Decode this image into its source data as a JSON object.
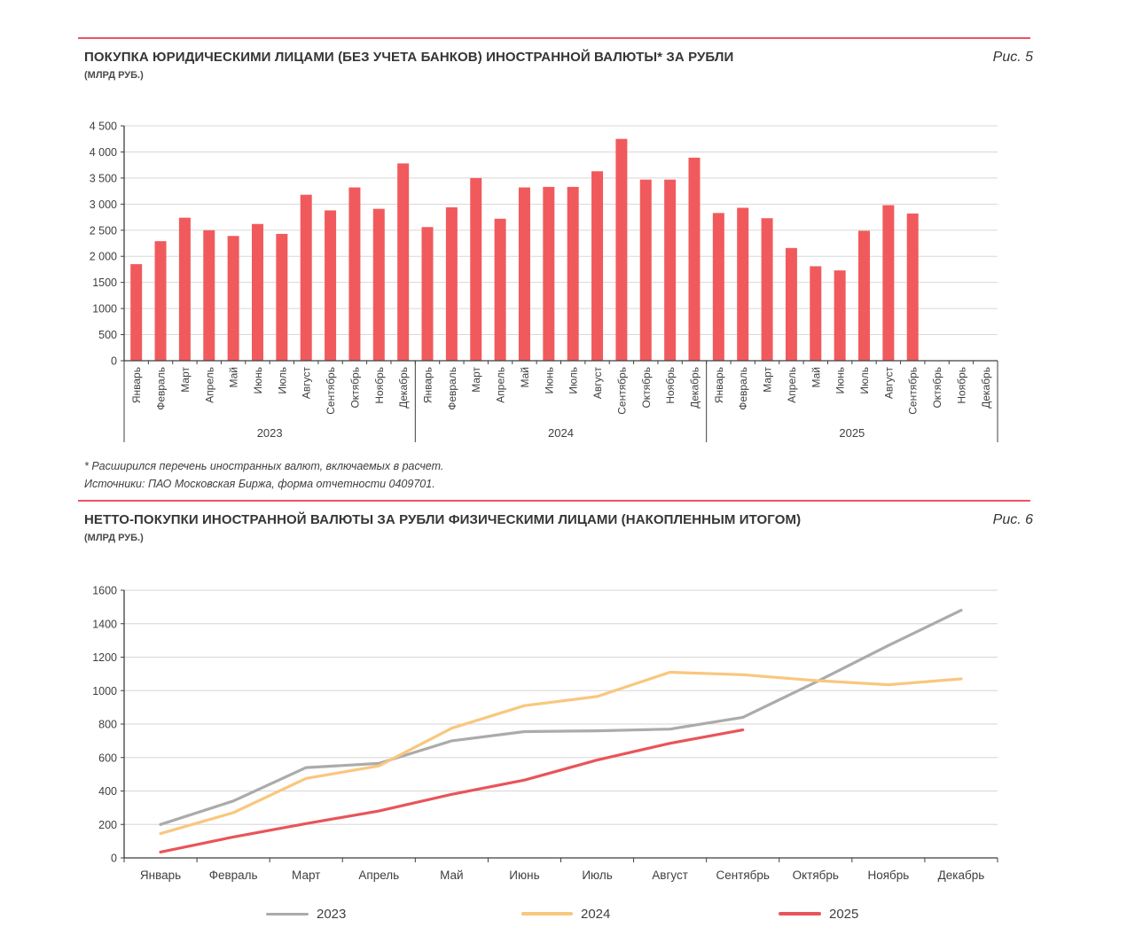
{
  "accent_rule_color": "#eb5264",
  "fig5": {
    "label": "Рис. 5",
    "units": "(МЛРД РУБ.)",
    "footnote": "* Расширился перечень иностранных валют, включаемых в расчет.",
    "source": "Источники: ПАО Московская Биржа, форма отчетности 0409701."
  },
  "fig6": {
    "label": "Рис. 6",
    "units": "(МЛРД РУБ.)"
  },
  "chart_data": [
    {
      "type": "bar",
      "title": "ПОКУПКА ЮРИДИЧЕСКИМИ ЛИЦАМИ (БЕЗ УЧЕТА БАНКОВ) ИНОСТРАННОЙ ВАЛЮТЫ* ЗА РУБЛИ",
      "units": "(МЛРД РУБ.)",
      "grid": true,
      "ylim": [
        0,
        4500
      ],
      "ytick_step": 500,
      "ytick_labels": [
        "0",
        "500",
        "1000",
        "1500",
        "2 000",
        "2 500",
        "3 000",
        "3 500",
        "4 000",
        "4 500"
      ],
      "categories": [
        "Январь",
        "Февраль",
        "Март",
        "Апрель",
        "Май",
        "Июнь",
        "Июль",
        "Август",
        "Сентябрь",
        "Октябрь",
        "Ноябрь",
        "Декабрь"
      ],
      "year_groups": [
        "2023",
        "2024",
        "2025"
      ],
      "bar_color": "#f15a5c",
      "series": [
        {
          "name": "2023",
          "values": [
            1850,
            2290,
            2740,
            2500,
            2390,
            2620,
            2430,
            3180,
            2880,
            3320,
            2910,
            3780
          ]
        },
        {
          "name": "2024",
          "values": [
            2560,
            2940,
            3500,
            2720,
            3320,
            3330,
            3330,
            3630,
            4250,
            3470,
            3470,
            3890
          ]
        },
        {
          "name": "2025",
          "values": [
            2830,
            2930,
            2730,
            2160,
            1810,
            1730,
            2490,
            2980,
            2820,
            null,
            null,
            null
          ]
        }
      ]
    },
    {
      "type": "line",
      "title": "НЕТТО-ПОКУПКИ ИНОСТРАННОЙ ВАЛЮТЫ ЗА РУБЛИ ФИЗИЧЕСКИМИ ЛИЦАМИ (НАКОПЛЕННЫМ ИТОГОМ)",
      "units": "(МЛРД РУБ.)",
      "grid": true,
      "legend_position": "bottom",
      "ylim": [
        0,
        1600
      ],
      "ytick_step": 200,
      "ytick_labels": [
        "0",
        "200",
        "400",
        "600",
        "800",
        "1000",
        "1200",
        "1400",
        "1600"
      ],
      "categories": [
        "Январь",
        "Февраль",
        "Март",
        "Апрель",
        "Май",
        "Июнь",
        "Июль",
        "Август",
        "Сентябрь",
        "Октябрь",
        "Ноябрь",
        "Декабрь"
      ],
      "series": [
        {
          "name": "2023",
          "color": "#ababab",
          "values": [
            200,
            340,
            540,
            565,
            700,
            755,
            760,
            770,
            840,
            1050,
            1270,
            1480
          ]
        },
        {
          "name": "2024",
          "color": "#f9c77e",
          "values": [
            145,
            270,
            475,
            550,
            775,
            910,
            965,
            1110,
            1095,
            1060,
            1035,
            1070
          ]
        },
        {
          "name": "2025",
          "color": "#e9545a",
          "values": [
            35,
            125,
            205,
            280,
            380,
            465,
            585,
            685,
            765,
            null,
            null,
            null
          ]
        }
      ]
    }
  ]
}
